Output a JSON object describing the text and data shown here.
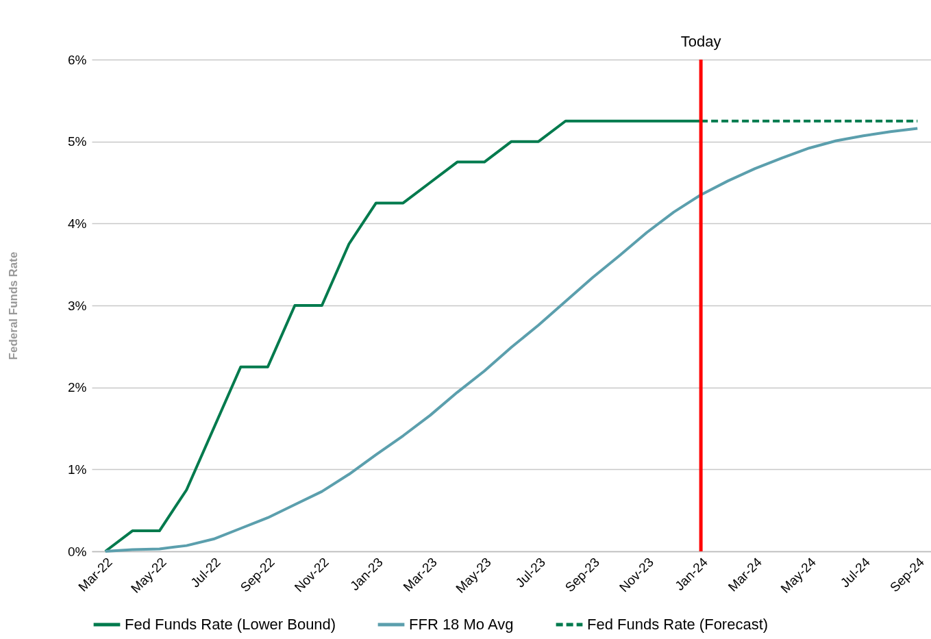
{
  "chart_data": {
    "type": "line",
    "ylabel": "Federal Funds Rate",
    "categories": [
      "Mar-22",
      null,
      "May-22",
      null,
      "Jul-22",
      null,
      "Sep-22",
      null,
      "Nov-22",
      null,
      "Jan-23",
      null,
      "Mar-23",
      null,
      "May-23",
      null,
      "Jul-23",
      null,
      "Sep-23",
      null,
      "Nov-23",
      null,
      "Jan-24",
      null,
      "Mar-24",
      null,
      "May-24",
      null,
      "Jul-24",
      null,
      "Sep-24"
    ],
    "series": [
      {
        "name": "Fed Funds Rate (Lower Bound)",
        "color": "#007a4d",
        "values": [
          0,
          0.25,
          0.25,
          0.75,
          1.5,
          2.25,
          2.25,
          3.0,
          3.0,
          3.75,
          4.25,
          4.25,
          4.5,
          4.75,
          4.75,
          5.0,
          5.0,
          5.25,
          5.25,
          5.25,
          5.25,
          5.25,
          5.25,
          null,
          null,
          null,
          null,
          null,
          null,
          null,
          null
        ]
      },
      {
        "name": "FFR 18 Mo Avg",
        "color": "#5b9fad",
        "values": [
          0,
          0.02,
          0.03,
          0.07,
          0.15,
          0.28,
          0.41,
          0.57,
          0.73,
          0.94,
          1.18,
          1.41,
          1.66,
          1.94,
          2.2,
          2.49,
          2.76,
          3.05,
          3.34,
          3.61,
          3.89,
          4.14,
          4.35,
          4.52,
          4.67,
          4.8,
          4.92,
          5.01,
          5.07,
          5.12,
          5.16
        ]
      },
      {
        "name": "Fed Funds Rate (Forecast)",
        "color": "#007a4d",
        "line_style": "dashed",
        "values": [
          null,
          null,
          null,
          null,
          null,
          null,
          null,
          null,
          null,
          null,
          null,
          null,
          null,
          null,
          null,
          null,
          null,
          null,
          null,
          null,
          null,
          null,
          5.25,
          5.25,
          5.25,
          5.25,
          5.25,
          5.25,
          5.25,
          5.25,
          5.25
        ]
      }
    ],
    "ylim": [
      0,
      6
    ],
    "yticks": [
      {
        "value": 0,
        "label": "0%"
      },
      {
        "value": 1,
        "label": "1%"
      },
      {
        "value": 2,
        "label": "2%"
      },
      {
        "value": 3,
        "label": "3%"
      },
      {
        "value": 4,
        "label": "4%"
      },
      {
        "value": 5,
        "label": "5%"
      },
      {
        "value": 6,
        "label": "6%"
      }
    ],
    "ref_lines": [
      {
        "axis": "x",
        "value": "Jan-24",
        "label": "Today",
        "color": "#ff0000"
      }
    ],
    "grid": "y",
    "legend": "bottom",
    "marker": "none"
  }
}
